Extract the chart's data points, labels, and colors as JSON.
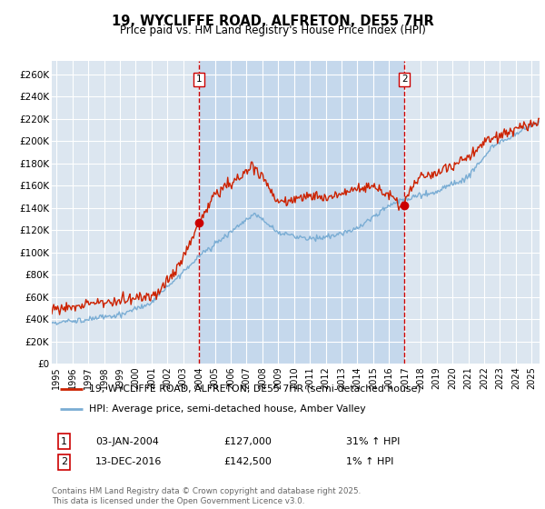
{
  "title": "19, WYCLIFFE ROAD, ALFRETON, DE55 7HR",
  "subtitle": "Price paid vs. HM Land Registry's House Price Index (HPI)",
  "ylabel_ticks": [
    "£0",
    "£20K",
    "£40K",
    "£60K",
    "£80K",
    "£100K",
    "£120K",
    "£140K",
    "£160K",
    "£180K",
    "£200K",
    "£220K",
    "£240K",
    "£260K"
  ],
  "ytick_vals": [
    0,
    20000,
    40000,
    60000,
    80000,
    100000,
    120000,
    140000,
    160000,
    180000,
    200000,
    220000,
    240000,
    260000
  ],
  "ylim": [
    0,
    272000
  ],
  "xlim_start": 1994.7,
  "xlim_end": 2025.5,
  "background_color": "#dce6f0",
  "grid_color": "#ffffff",
  "shade_color": "#c5d8ec",
  "sale1_x": 2004.01,
  "sale1_y": 127000,
  "sale1_label": "1",
  "sale2_x": 2016.96,
  "sale2_y": 142500,
  "sale2_label": "2",
  "vline_color": "#cc0000",
  "sale_marker_color": "#cc0000",
  "hpi_line_color": "#7aadd4",
  "price_line_color": "#cc2200",
  "legend_label_price": "19, WYCLIFFE ROAD, ALFRETON, DE55 7HR (semi-detached house)",
  "legend_label_hpi": "HPI: Average price, semi-detached house, Amber Valley",
  "annotation1_date": "03-JAN-2004",
  "annotation1_price": "£127,000",
  "annotation1_hpi": "31% ↑ HPI",
  "annotation2_date": "13-DEC-2016",
  "annotation2_price": "£142,500",
  "annotation2_hpi": "1% ↑ HPI",
  "footer": "Contains HM Land Registry data © Crown copyright and database right 2025.\nThis data is licensed under the Open Government Licence v3.0.",
  "xtick_years": [
    1995,
    1996,
    1997,
    1998,
    1999,
    2000,
    2001,
    2002,
    2003,
    2004,
    2005,
    2006,
    2007,
    2008,
    2009,
    2010,
    2011,
    2012,
    2013,
    2014,
    2015,
    2016,
    2017,
    2018,
    2019,
    2020,
    2021,
    2022,
    2023,
    2024,
    2025
  ]
}
